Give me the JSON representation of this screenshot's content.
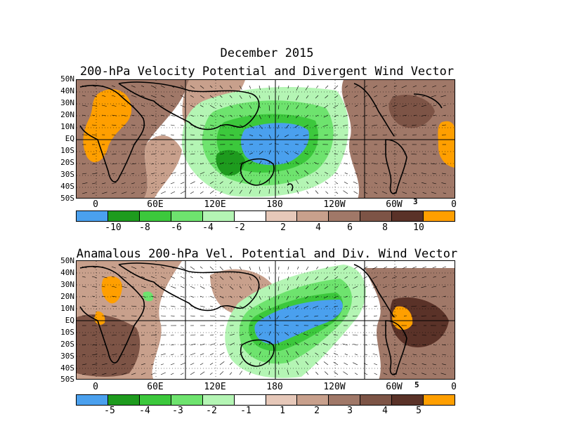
{
  "title": "December 2015",
  "panels": [
    {
      "title": "200-hPa Velocity Potential and Divergent Wind Vector",
      "lat_labels": [
        "50N",
        "40N",
        "30N",
        "20N",
        "10N",
        "EQ",
        "10S",
        "20S",
        "30S",
        "40S",
        "50S"
      ],
      "lon_labels": [
        "0",
        "60E",
        "120E",
        "180",
        "120W",
        "60W",
        "0"
      ],
      "vector_ref": "3",
      "colorbar": {
        "colors": [
          "#4aa0ee",
          "#1e9b1e",
          "#3cc83c",
          "#6ee36e",
          "#b4f5b4",
          "#ffffff",
          "#e6c8b9",
          "#c8a08c",
          "#a07868",
          "#7d5446",
          "#5a3228",
          "#ff9f00"
        ],
        "labels": [
          "-10",
          "-8",
          "-6",
          "-4",
          "-2",
          "2",
          "4",
          "6",
          "8",
          "10"
        ]
      }
    },
    {
      "title": "Anamalous 200-hPa Vel. Potential and Div. Wind Vector",
      "lat_labels": [
        "50N",
        "40N",
        "30N",
        "20N",
        "10N",
        "EQ",
        "10S",
        "20S",
        "30S",
        "40S",
        "50S"
      ],
      "lon_labels": [
        "0",
        "60E",
        "120E",
        "180",
        "120W",
        "60W",
        "0"
      ],
      "vector_ref": "5",
      "colorbar": {
        "colors": [
          "#4aa0ee",
          "#1e9b1e",
          "#3cc83c",
          "#6ee36e",
          "#b4f5b4",
          "#ffffff",
          "#e6c8b9",
          "#c8a08c",
          "#a07868",
          "#7d5446",
          "#5a3228",
          "#ff9f00"
        ],
        "labels": [
          "-5",
          "-4",
          "-3",
          "-2",
          "-1",
          "1",
          "2",
          "3",
          "4",
          "5"
        ]
      }
    }
  ],
  "map_style": {
    "projection": "cylindrical",
    "lon_range": [
      -20,
      360
    ],
    "lat_range": [
      -50,
      50
    ],
    "grid_lines": "dotted",
    "land_outline": "black",
    "reference_lines": "solid"
  }
}
